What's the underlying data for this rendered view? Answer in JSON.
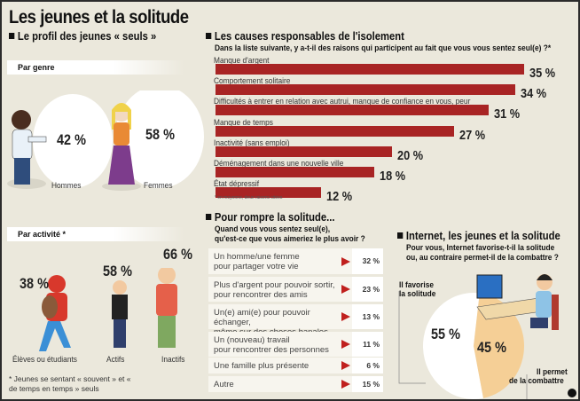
{
  "title": "Les jeunes et la solitude",
  "profile": {
    "heading": "Le profil des jeunes « seuls »",
    "by_gender": {
      "label": "Par genre",
      "items": [
        {
          "label": "Hommes",
          "value": "42 %"
        },
        {
          "label": "Femmes",
          "value": "58 %"
        }
      ]
    },
    "by_activity": {
      "label": "Par activité *",
      "items": [
        {
          "label": "Élèves ou étudiants",
          "value": "38 %"
        },
        {
          "label": "Actifs",
          "value": "58 %"
        },
        {
          "label": "Inactifs",
          "value": "66 %"
        }
      ]
    },
    "footnote": "* Jeunes se sentant « souvent » et « de temps en temps » seuls"
  },
  "causes": {
    "heading": "Les causes responsables de l'isolement",
    "question": "Dans la liste suivante, y a-t-il des raisons qui participent au fait que vous vous sentez seul(e) ?*",
    "footnote": "* en moyenne, deux raisons citées"
  },
  "rompre": {
    "heading": "Pour rompre la solitude...",
    "question_1": "Quand vous vous sentez seul(e),",
    "question_2": "qu'est-ce que vous aimeriez le plus avoir ?",
    "items": [
      {
        "l1": "Un homme/une femme",
        "l2": "pour partager votre vie",
        "value": "32 %"
      },
      {
        "l1": "Plus d'argent pour pouvoir sortir,",
        "l2": "pour rencontrer des amis",
        "value": "23 %"
      },
      {
        "l1": "Un(e) ami(e) pour pouvoir échanger,",
        "l2": "même sur des choses banales",
        "value": "13 %"
      },
      {
        "l1": "Un (nouveau) travail",
        "l2": "pour rencontrer des personnes",
        "value": "11 %"
      },
      {
        "l1": "Une famille plus présente",
        "l2": "",
        "value": "6 %"
      },
      {
        "l1": "Autre",
        "l2": "",
        "value": "15 %"
      }
    ]
  },
  "internet": {
    "heading": "Internet, les jeunes et la solitude",
    "question_1": "Pour vous, Internet favorise-t-il la solitude",
    "question_2": "ou, au contraire permet-il de la combattre ?",
    "favorise_1": "Il favorise",
    "favorise_2": "la solitude",
    "permet_1": "Il permet",
    "permet_2": "de la combattre"
  },
  "chart_data": [
    {
      "type": "bar",
      "orientation": "horizontal",
      "title": "Les causes responsables de l'isolement",
      "categories": [
        "Manque d'argent",
        "Comportement solitaire",
        "Difficultés à entrer en relation avec autrui, manque de confiance en vous, peur",
        "Manque de temps",
        "Inactivité (sans emploi)",
        "Déménagement dans une nouvelle ville",
        "État dépressif"
      ],
      "values": [
        35,
        34,
        31,
        27,
        20,
        18,
        12
      ],
      "labels": [
        "35 %",
        "34 %",
        "31 %",
        "27 %",
        "20 %",
        "18 %",
        "12 %"
      ],
      "unit": "%",
      "color": "#a82424"
    },
    {
      "type": "pie",
      "title": "Internet, les jeunes et la solitude",
      "categories": [
        "Il favorise la solitude",
        "Il permet de la combattre"
      ],
      "values": [
        55,
        45
      ],
      "labels": [
        "55 %",
        "45 %"
      ],
      "colors": [
        "#ffffff",
        "#f5cf96"
      ]
    }
  ]
}
